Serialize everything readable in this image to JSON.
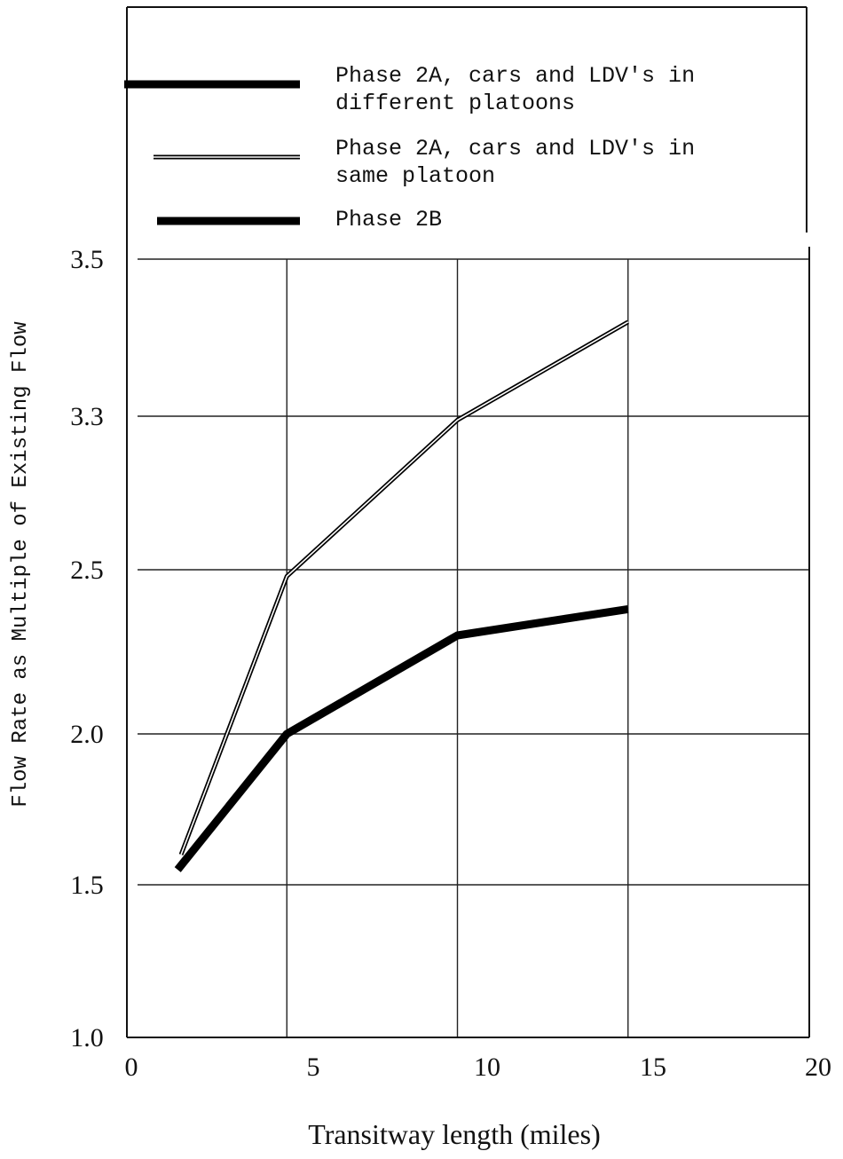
{
  "chart_data": {
    "type": "line",
    "title": "",
    "xlabel": "Transitway length (miles)",
    "ylabel": "Flow Rate as Multiple of Existing Flow",
    "x_ticks": [
      "0",
      "5",
      "10",
      "15",
      "20"
    ],
    "y_ticks": [
      "1.0",
      "1.5",
      "2.0",
      "2.5",
      "3.3",
      "3.5"
    ],
    "xlim": [
      0,
      20
    ],
    "ylim": [
      1.0,
      3.5
    ],
    "grid": true,
    "legend_position": "top",
    "series": [
      {
        "name": "Phase 2A, cars and LDV's in different platoons",
        "name_lines": [
          "Phase 2A, cars and LDV's in",
          "different platoons"
        ],
        "style": "thick",
        "color": "#000000",
        "x": [],
        "y": []
      },
      {
        "name": "Phase 2A, cars and LDV's in same platoon",
        "name_lines": [
          "Phase 2A, cars and LDV's in",
          "same platoon"
        ],
        "style": "double",
        "color": "#000000",
        "x": [
          1.9,
          5,
          10,
          15
        ],
        "y": [
          1.6,
          2.48,
          3.28,
          3.42
        ]
      },
      {
        "name": "Phase 2B",
        "name_lines": [
          "Phase 2B"
        ],
        "style": "thick",
        "color": "#000000",
        "x": [
          1.8,
          5,
          10,
          15
        ],
        "y": [
          1.55,
          2.0,
          2.3,
          2.38
        ]
      }
    ]
  }
}
